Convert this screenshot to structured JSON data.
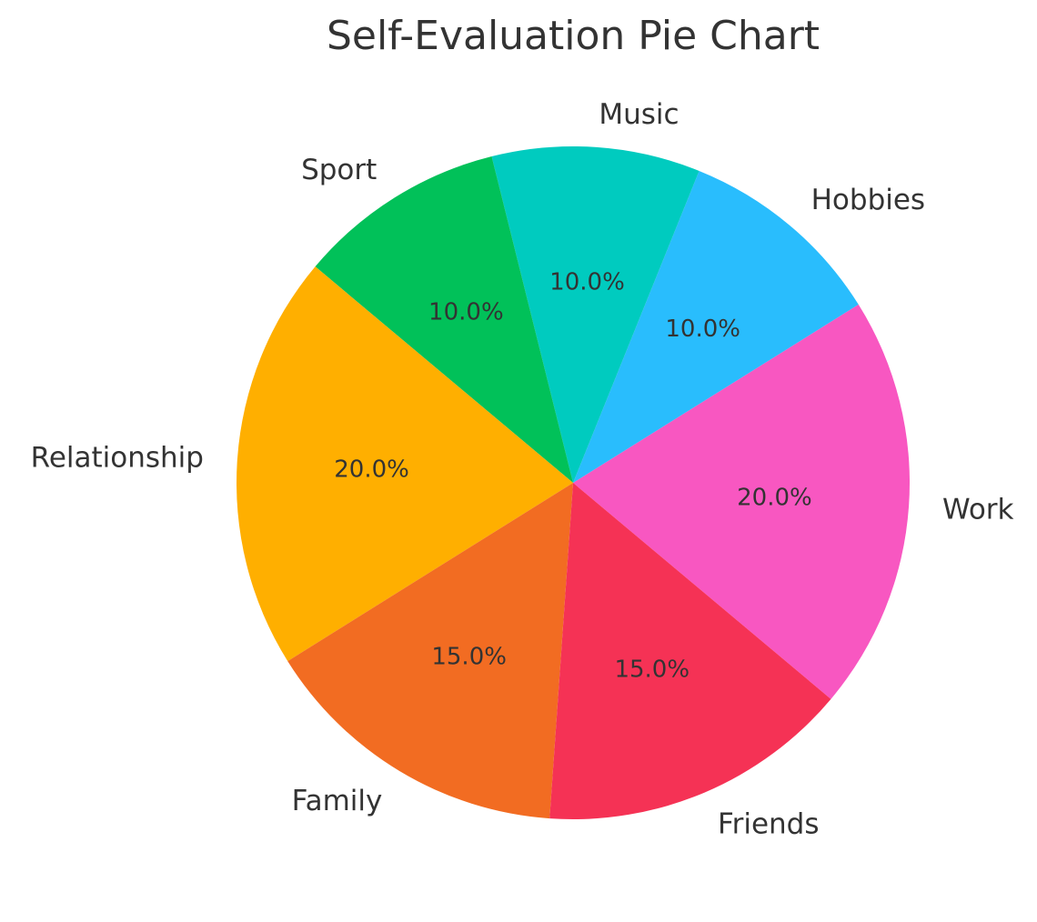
{
  "chart_data": {
    "type": "pie",
    "title": "Self-Evaluation Pie Chart",
    "start_angle_deg": -40,
    "direction": "counterclockwise",
    "categories": [
      "Work",
      "Hobbies",
      "Music",
      "Sport",
      "Relationship",
      "Family",
      "Friends"
    ],
    "values": [
      20,
      10,
      10,
      10,
      20,
      15,
      15
    ],
    "labels_pct": [
      "20.0%",
      "10.0%",
      "10.0%",
      "10.0%",
      "20.0%",
      "15.0%",
      "15.0%"
    ],
    "colors": [
      "#f857c1",
      "#29bdfd",
      "#00cbbf",
      "#01c159",
      "#ffaf00",
      "#f26c22",
      "#f53255"
    ],
    "legend": "none"
  }
}
